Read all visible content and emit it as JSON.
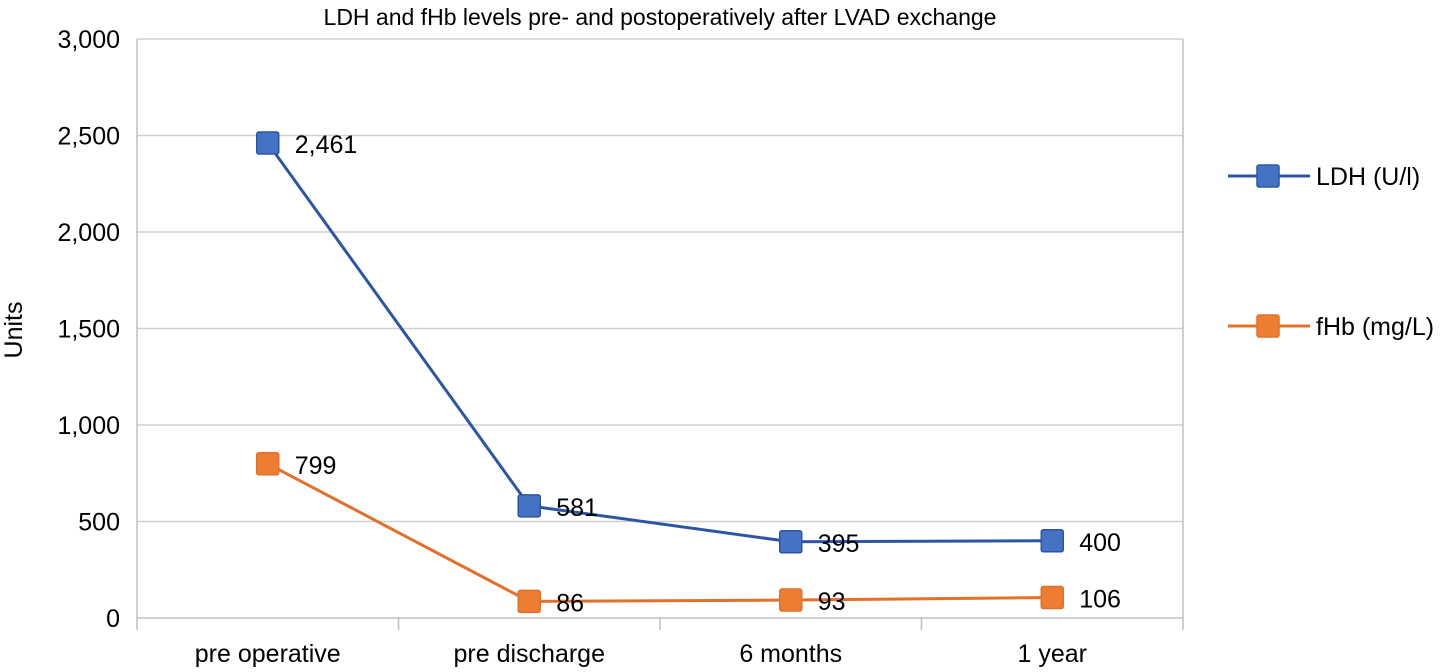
{
  "chart_data": {
    "type": "line",
    "title": "LDH and fHb levels pre- and postoperatively after LVAD exchange",
    "xlabel": "",
    "ylabel": "Units",
    "categories": [
      "pre operative",
      "pre discharge",
      "6 months",
      "1 year"
    ],
    "ylim": [
      0,
      3000
    ],
    "yticks": [
      0,
      500,
      1000,
      1500,
      2000,
      2500,
      3000
    ],
    "ytick_labels": [
      "0",
      "500",
      "1,000",
      "1,500",
      "2,000",
      "2,500",
      "3,000"
    ],
    "grid": true,
    "legend_position": "right",
    "series": [
      {
        "name": "LDH (U/l)",
        "color": "#2E55A4",
        "marker_color": "#4472C4",
        "values": [
          2461,
          581,
          395,
          400
        ],
        "labels": [
          "2,461",
          "581",
          "395",
          "400"
        ]
      },
      {
        "name": "fHb (mg/L)",
        "color": "#E2702A",
        "marker_color": "#ED7D31",
        "values": [
          799,
          86,
          93,
          106
        ],
        "labels": [
          "799",
          "86",
          "93",
          "106"
        ]
      }
    ]
  }
}
